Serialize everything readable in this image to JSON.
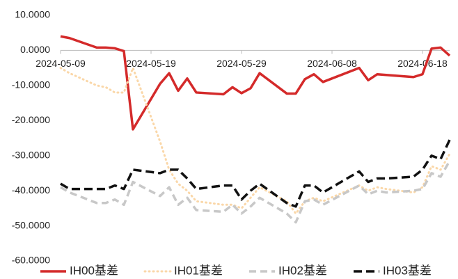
{
  "chart_data": {
    "type": "line",
    "x": [
      "2024-05-09",
      "2024-05-10",
      "2024-05-13",
      "2024-05-14",
      "2024-05-15",
      "2024-05-16",
      "2024-05-17",
      "2024-05-20",
      "2024-05-21",
      "2024-05-22",
      "2024-05-23",
      "2024-05-24",
      "2024-05-27",
      "2024-05-28",
      "2024-05-29",
      "2024-05-30",
      "2024-05-31",
      "2024-06-03",
      "2024-06-04",
      "2024-06-05",
      "2024-06-06",
      "2024-06-07",
      "2024-06-11",
      "2024-06-12",
      "2024-06-13",
      "2024-06-14",
      "2024-06-17",
      "2024-06-18",
      "2024-06-19",
      "2024-06-20",
      "2024-06-21"
    ],
    "series": [
      {
        "name": "IH00基差",
        "color": "#d42a2a",
        "values": [
          4.0,
          3.5,
          0.8,
          0.8,
          0.6,
          -0.2,
          -22.5,
          -9.5,
          -6.5,
          -11.5,
          -8.0,
          -12.0,
          -12.5,
          -10.5,
          -12.2,
          -10.8,
          -6.5,
          -12.3,
          -12.3,
          -8.2,
          -6.8,
          -9.0,
          -5.0,
          -8.5,
          -6.8,
          -7.0,
          -7.6,
          -6.8,
          0.5,
          0.8,
          -1.5
        ]
      },
      {
        "name": "IH01基差",
        "color": "#fad7a8",
        "values": [
          -5,
          -6.5,
          -10,
          -10.5,
          -12,
          -12,
          -5,
          -26,
          -34,
          -38,
          -40,
          -43,
          -44,
          -44,
          -45,
          -42,
          -39,
          -43,
          -46.5,
          -43,
          -42,
          -43,
          -38.5,
          -40,
          -39,
          -39.5,
          -40.5,
          -39,
          -33,
          -34,
          -29.5
        ]
      },
      {
        "name": "IH02基差",
        "color": "#c8c8c8",
        "values": [
          -39,
          -40.5,
          -43.5,
          -43.5,
          -42.5,
          -44,
          -37.5,
          -41.5,
          -39,
          -44,
          -42,
          -45.5,
          -46,
          -44,
          -46.5,
          -44.5,
          -42,
          -46.5,
          -49,
          -43,
          -42.5,
          -44,
          -38.5,
          -41,
          -40,
          -40.5,
          -40,
          -39.5,
          -35,
          -36,
          -31.5
        ]
      },
      {
        "name": "IH03基差",
        "color": "#111111",
        "values": [
          -38,
          -39.5,
          -39.5,
          -39.5,
          -38.5,
          -39.5,
          -34,
          -35,
          -34,
          -34,
          -36.5,
          -39.5,
          -38.5,
          -38.5,
          -42.5,
          -40,
          -38,
          -43.5,
          -44.5,
          -38.5,
          -38.5,
          -40.5,
          -34.5,
          -37.5,
          -36.5,
          -36.5,
          -36,
          -34,
          -30,
          -31,
          -25.5
        ]
      }
    ],
    "xlim": [
      "2024-05-09",
      "2024-06-21"
    ],
    "xticks": [
      "2024-05-09",
      "2024-05-19",
      "2024-05-29",
      "2024-06-08",
      "2024-06-18"
    ],
    "ylim": [
      -60,
      10
    ],
    "yticks": [
      {
        "value": 10,
        "label": "10.0000"
      },
      {
        "value": 0,
        "label": "0.0000"
      },
      {
        "value": -10,
        "label": "-10.0000"
      },
      {
        "value": -20,
        "label": "-20.0000"
      },
      {
        "value": -30,
        "label": "-30.0000"
      },
      {
        "value": -40,
        "label": "-40.0000"
      },
      {
        "value": -50,
        "label": "-50.0000"
      },
      {
        "value": -60,
        "label": "-60.0000"
      }
    ],
    "grid": false,
    "legend": "bottom"
  }
}
